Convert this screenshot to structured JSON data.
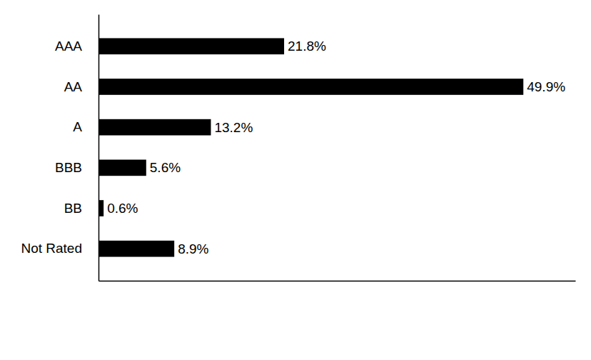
{
  "chart_data": {
    "type": "bar",
    "orientation": "horizontal",
    "categories": [
      "AAA",
      "AA",
      "A",
      "BBB",
      "BB",
      "Not Rated"
    ],
    "values": [
      21.8,
      49.9,
      13.2,
      5.6,
      0.6,
      8.9
    ],
    "value_labels": [
      "21.8%",
      "49.9%",
      "13.2%",
      "5.6%",
      "0.6%",
      "8.9%"
    ],
    "color": "#000000",
    "xlim": [
      0,
      56
    ],
    "data_labels": true,
    "tick_labels": "y",
    "grid": false
  }
}
